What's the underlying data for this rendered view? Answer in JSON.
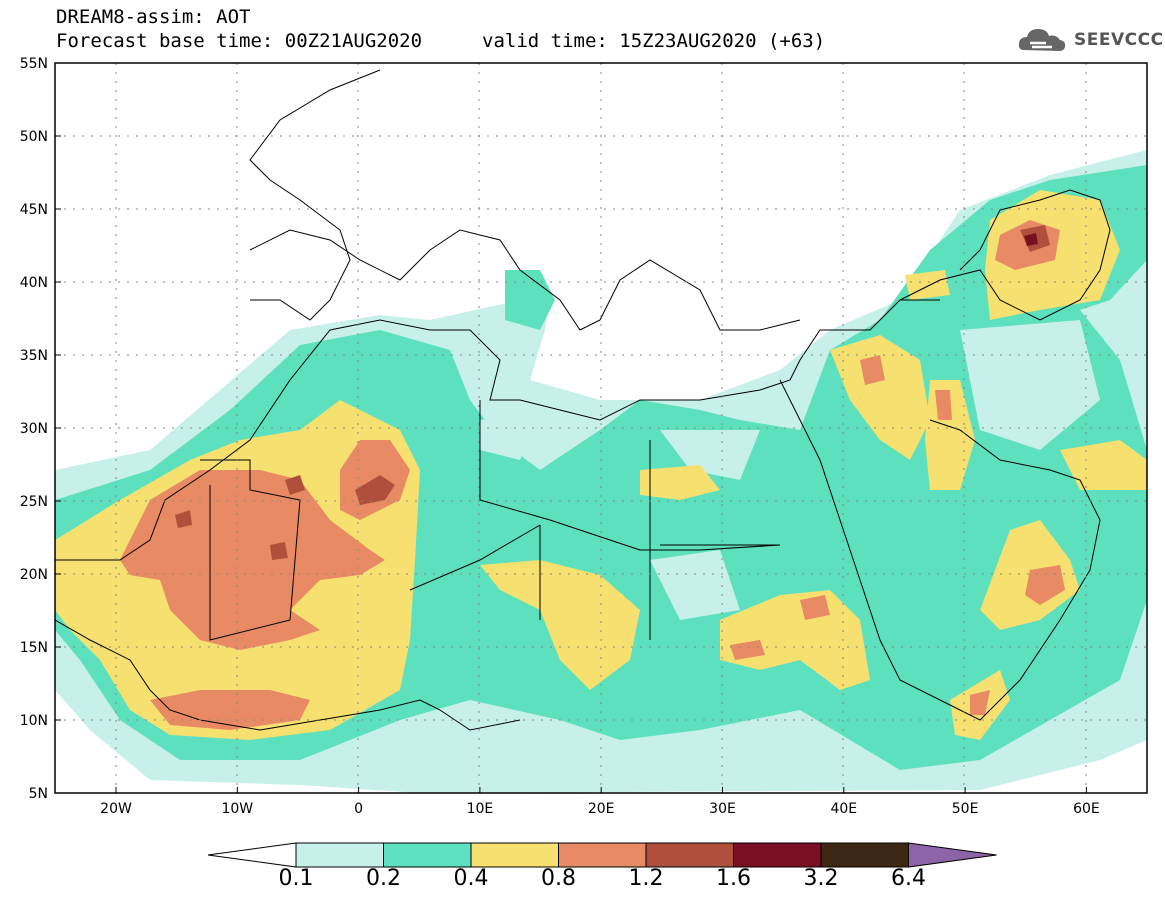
{
  "header": {
    "title": "DREAM8-assim: AOT",
    "base_time": "Forecast base time: 00Z21AUG2020",
    "valid_time": "valid time: 15Z23AUG2020 (+63)"
  },
  "logo": {
    "text": "SEEVCCC",
    "icon": "cloud-icon"
  },
  "map": {
    "lon_range": [
      -25,
      65
    ],
    "lat_range": [
      5,
      55
    ],
    "lat_ticks": [
      "55N",
      "50N",
      "45N",
      "40N",
      "35N",
      "30N",
      "25N",
      "20N",
      "15N",
      "10N",
      "5N"
    ],
    "lon_ticks": [
      "20W",
      "10W",
      "0",
      "10E",
      "20E",
      "30E",
      "40E",
      "50E",
      "60E"
    ]
  },
  "colorbar": {
    "labels": [
      "0.1",
      "0.2",
      "0.4",
      "0.8",
      "1.2",
      "1.6",
      "3.2",
      "6.4"
    ],
    "colors": [
      "#c7f0eb",
      "#5ce0bd",
      "#f5e070",
      "#e88a64",
      "#b0503c",
      "#7a0f24",
      "#3e2714",
      "#8d64a8"
    ],
    "undercolor": "#ffffff"
  }
}
